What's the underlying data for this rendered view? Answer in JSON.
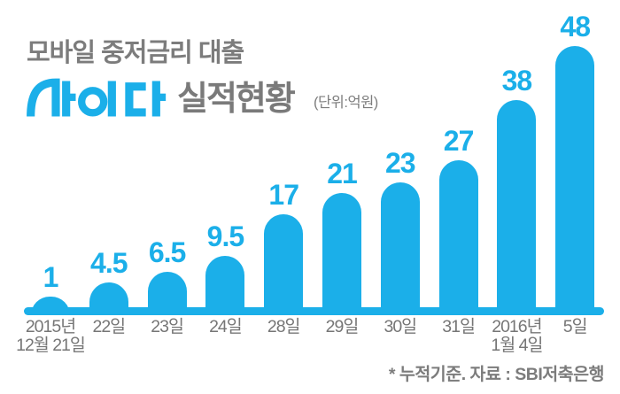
{
  "header": {
    "title": "모바일 중저금리 대출",
    "logo_text": "사이다",
    "subtitle": "실적현황",
    "unit_note": "(단위:억원)"
  },
  "footer": {
    "note": "* 누적기준. 자료 : SBI저축은행"
  },
  "colors": {
    "accent_blue": "#1BAFE9",
    "text_gray": "#7c7c7c",
    "axis_label_gray": "#767676"
  },
  "chart_data": {
    "type": "bar",
    "title": "모바일 중저금리 대출 사이다 실적현황",
    "unit_label": "(단위:억원)",
    "categories": [
      "2015년\n12월 21일",
      "22일",
      "23일",
      "24일",
      "28일",
      "29일",
      "30일",
      "31일",
      "2016년\n1월 4일",
      "5일"
    ],
    "values": [
      1,
      4.5,
      6.5,
      9.5,
      17,
      21,
      23,
      27,
      38,
      48
    ],
    "value_labels_shown": true,
    "bar_color": "#1BAFE9",
    "ylim": [
      0,
      50
    ],
    "grid": false,
    "legend": null,
    "note": "누적기준",
    "source": "SBI저축은행"
  }
}
